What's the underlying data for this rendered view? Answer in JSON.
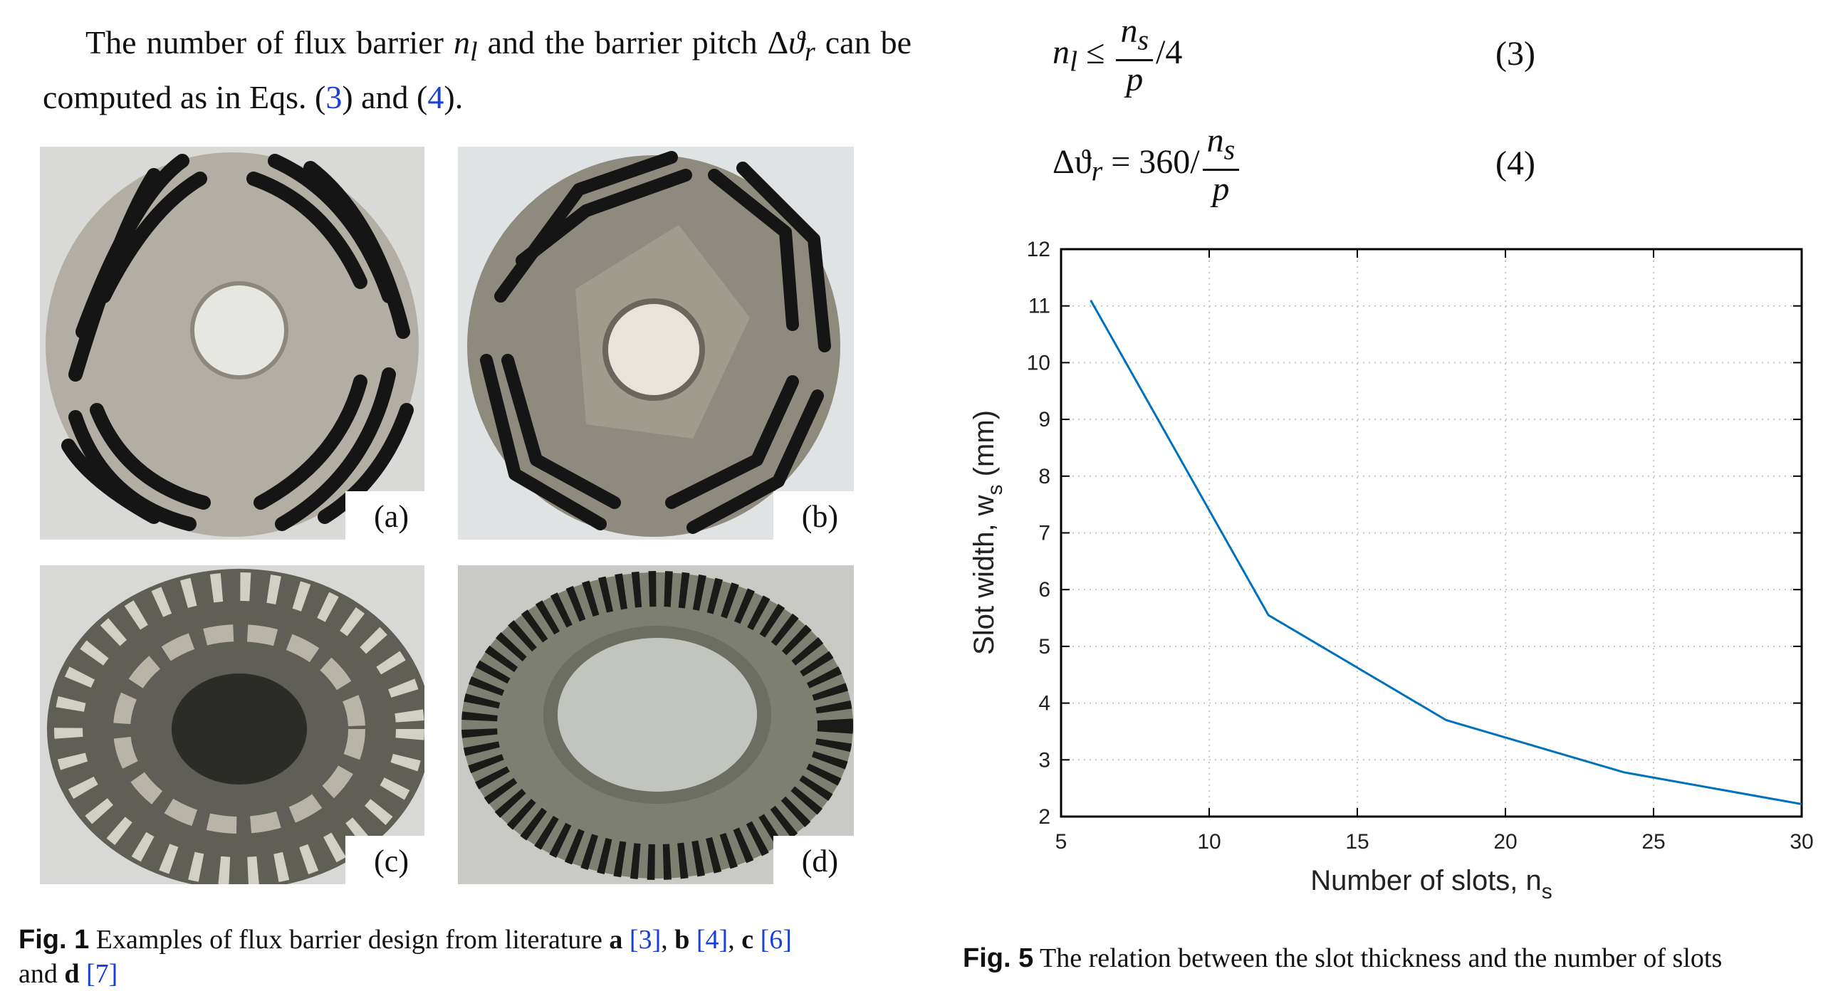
{
  "left_text": {
    "part1": "The number of flux barrier ",
    "nl": "n",
    "nl_sub": "l",
    "part2": " and the barrier pitch Δ",
    "theta": "ϑ",
    "theta_sub": "r",
    "part3": " can be computed as in Eqs. (",
    "ref3": "3",
    "part4": ") and (",
    "ref4": "4",
    "part5": ")."
  },
  "equations": {
    "eq3_lhs": "n",
    "eq3_lhs_sub": "l",
    "eq3_rel": " ≤ ",
    "eq3_num": "n",
    "eq3_num_sub": "s",
    "eq3_den": "p",
    "eq3_tail": "/4",
    "eq3_number": "(3)",
    "eq4_lhs": "Δϑ",
    "eq4_lhs_sub": "r",
    "eq4_rel": " = 360/",
    "eq4_num": "n",
    "eq4_num_sub": "s",
    "eq4_den": "p",
    "eq4_number": "(4)"
  },
  "photos": [
    {
      "label": "(a)",
      "color_bg": "#d9d9d7",
      "color_disc": "#b3aea4"
    },
    {
      "label": "(b)",
      "color_bg": "#dfe3e4",
      "color_disc": "#8e8a7e"
    },
    {
      "label": "(c)",
      "color_bg": "#d8d9d6",
      "color_disc": "#5f5f57"
    },
    {
      "label": "(d)",
      "color_bg": "#c9c9c6",
      "color_disc": "#7d7f70"
    }
  ],
  "fig1_caption": {
    "tag": "Fig. 1",
    "text1": "  Examples of flux barrier design from literature ",
    "a": "a",
    "r3": "[3]",
    "b": "b",
    "r4": "[4]",
    "c": "c",
    "r6": "[6]",
    "and": "and ",
    "d": "d",
    "r7": "[7]"
  },
  "chart_data": {
    "type": "line",
    "x": [
      6,
      12,
      18,
      24,
      30
    ],
    "series": [
      {
        "values": [
          11.1,
          5.55,
          3.7,
          2.78,
          2.22
        ],
        "color": "#0072bd"
      }
    ],
    "xlabel": "Number of slots, n",
    "xlabel_sub": "s",
    "ylabel": "Slot width, w",
    "ylabel_sub": "s",
    "ylabel_unit": " (mm)",
    "xlim": [
      5,
      30
    ],
    "ylim": [
      2,
      12
    ],
    "xticks": [
      5,
      10,
      15,
      20,
      25,
      30
    ],
    "yticks": [
      2,
      3,
      4,
      5,
      6,
      7,
      8,
      9,
      10,
      11,
      12
    ],
    "grid": true
  },
  "fig5_caption": {
    "tag": "Fig. 5",
    "text": "  The relation between the slot thickness and the number of slots"
  }
}
